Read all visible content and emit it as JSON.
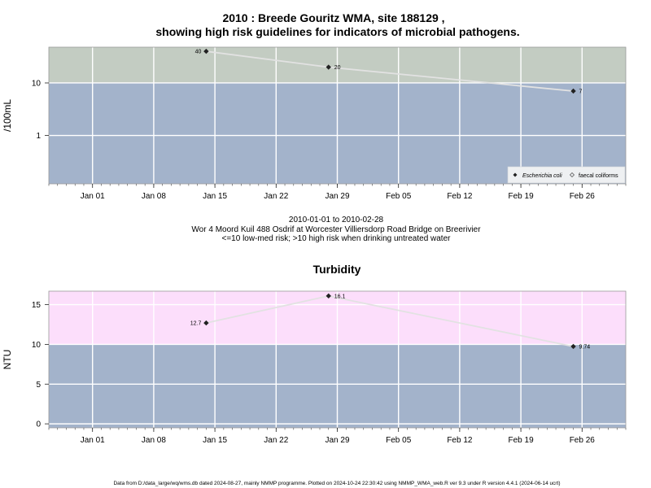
{
  "chart_data": [
    {
      "type": "line",
      "title_line1": "2010 : Breede Gouritz WMA, site 188129 ,",
      "title_line2": "showing high risk guidelines for indicators of microbial pathogens.",
      "ylabel": "/100mL",
      "yscale": "log",
      "ylim": [
        0.12,
        48
      ],
      "yticks": [
        "1",
        "10"
      ],
      "ytick_values": [
        1,
        10
      ],
      "xlim": [
        "2009-12-27",
        "2010-03-03"
      ],
      "xticks": [
        "Jan 01",
        "Jan 08",
        "Jan 15",
        "Jan 22",
        "Jan 29",
        "Feb 05",
        "Feb 12",
        "Feb 19",
        "Feb 26"
      ],
      "xtick_dates": [
        "2010-01-01",
        "2010-01-08",
        "2010-01-15",
        "2010-01-22",
        "2010-01-29",
        "2010-02-05",
        "2010-02-12",
        "2010-02-19",
        "2010-02-26"
      ],
      "bands": [
        {
          "from": 0.12,
          "to": 10,
          "color": "#a3b3cb"
        },
        {
          "from": 10,
          "to": 48,
          "color": "#c3ccc2"
        }
      ],
      "series": [
        {
          "name": "Escherichia coli",
          "x": [
            "2010-01-14",
            "2010-01-28",
            "2010-02-25"
          ],
          "y": [
            40,
            20,
            7
          ],
          "labels": [
            "40",
            "20",
            "7"
          ]
        }
      ],
      "legend": [
        "Escherichia coli",
        "faecal coliforms"
      ],
      "legend_position": "bottom-right",
      "grid": true
    },
    {
      "type": "line",
      "title": "Turbidity",
      "ylabel": "NTU",
      "ylim": [
        -0.5,
        16.7
      ],
      "yticks": [
        "0",
        "5",
        "10",
        "15"
      ],
      "ytick_values": [
        0,
        5,
        10,
        15
      ],
      "xlim": [
        "2009-12-27",
        "2010-03-03"
      ],
      "xticks": [
        "Jan 01",
        "Jan 08",
        "Jan 15",
        "Jan 22",
        "Jan 29",
        "Feb 05",
        "Feb 12",
        "Feb 19",
        "Feb 26"
      ],
      "xtick_dates": [
        "2010-01-01",
        "2010-01-08",
        "2010-01-15",
        "2010-01-22",
        "2010-01-29",
        "2010-02-05",
        "2010-02-12",
        "2010-02-19",
        "2010-02-26"
      ],
      "bands": [
        {
          "from": -0.5,
          "to": 10,
          "color": "#a3b3cb"
        },
        {
          "from": 10,
          "to": 16.7,
          "color": "#fcdefb"
        }
      ],
      "series": [
        {
          "x": [
            "2010-01-14",
            "2010-01-28",
            "2010-02-25"
          ],
          "y": [
            12.7,
            16.1,
            9.74
          ],
          "labels": [
            "12.7",
            "16.1",
            "9.74"
          ]
        }
      ],
      "grid": true
    }
  ],
  "subtitle": {
    "line1": "2010-01-01 to 2010-02-28",
    "line2": "Wor 4 Moord Kuil 488 Osdrif at Worcester Villiersdorp Road Bridge on Breerivier",
    "line3": "<=10 low-med risk; >10 high risk when drinking untreated water"
  },
  "footer": "Data from D:/data_large/wq/wms.db dated 2024-08-27, mainly NMMP programme. Plotted on 2024-10-24 22:30:42 using NMMP_WMA_web.R ver 9.3 under R version 4.4.1 (2024-06-14 ucrt)",
  "colors": {
    "line": "#e2e2e2",
    "grid": "#ffffff",
    "marker": "#222222",
    "frame": "#9a9a9a"
  }
}
